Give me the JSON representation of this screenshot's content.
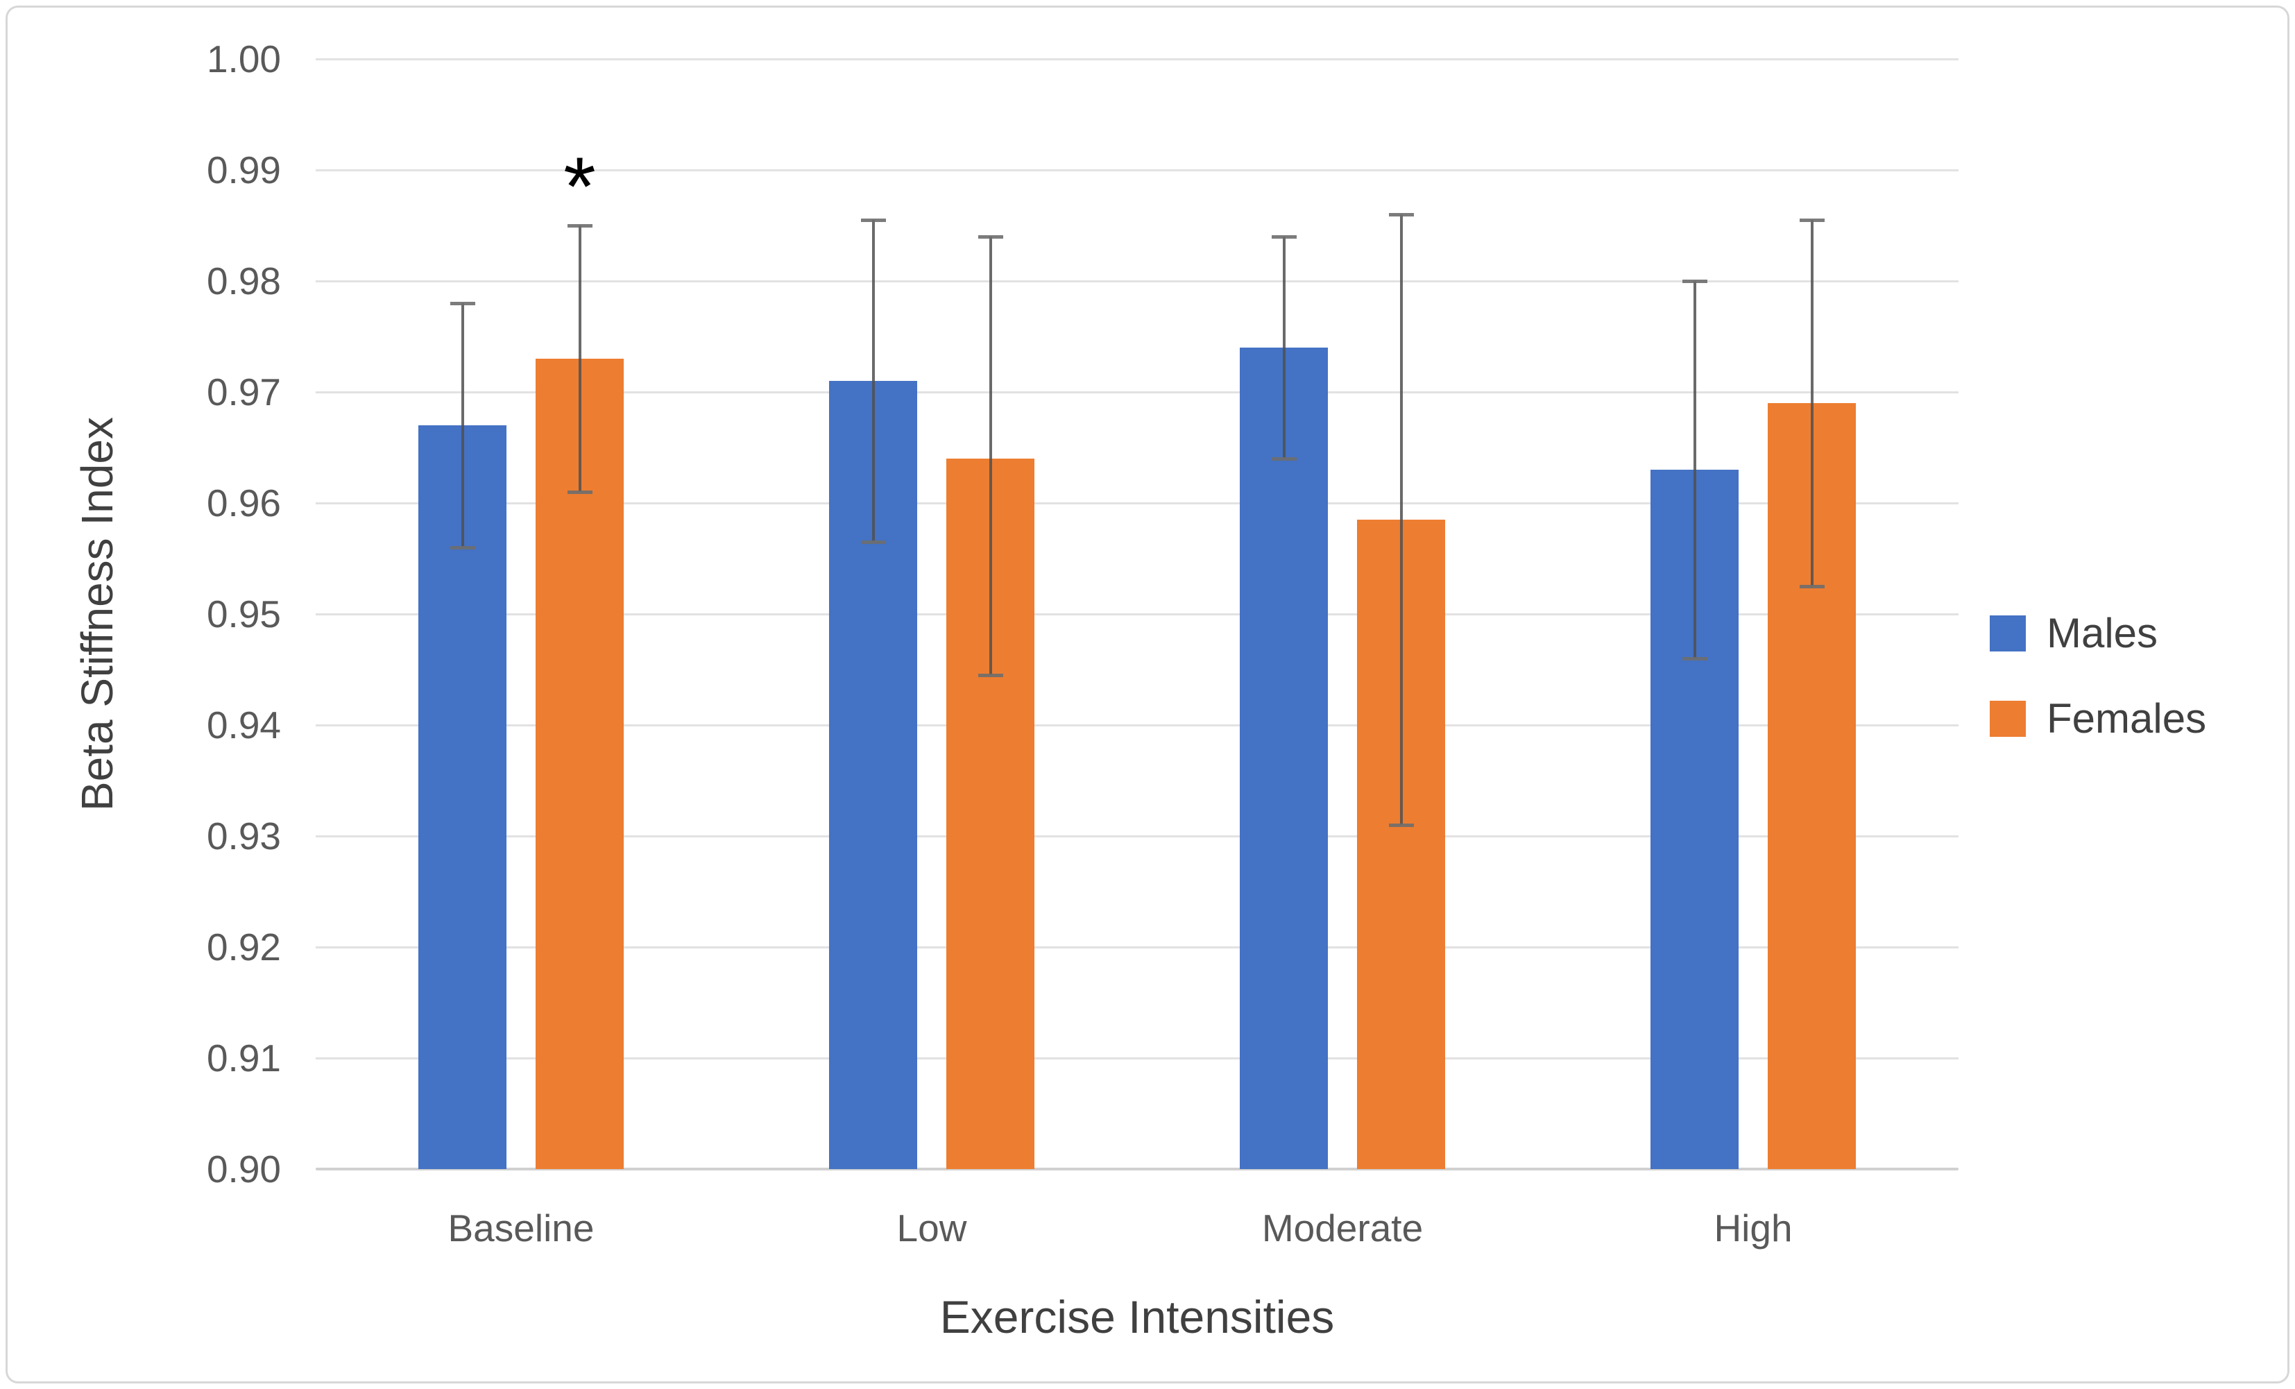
{
  "chart_data": {
    "type": "bar",
    "title": "",
    "categories": [
      "Baseline",
      "Low",
      "Moderate",
      "High"
    ],
    "series": [
      {
        "name": "Males",
        "color": "#4472C4",
        "values": [
          0.967,
          0.971,
          0.974,
          0.963
        ],
        "error_high": [
          0.978,
          0.9855,
          0.984,
          0.98
        ],
        "error_low": [
          0.956,
          0.9565,
          0.964,
          0.946
        ]
      },
      {
        "name": "Females",
        "color": "#ED7D31",
        "values": [
          0.973,
          0.964,
          0.9585,
          0.969
        ],
        "error_high": [
          0.985,
          0.984,
          0.986,
          0.9855
        ],
        "error_low": [
          0.961,
          0.9445,
          0.931,
          0.9525
        ]
      }
    ],
    "xlabel": "Exercise Intensities",
    "ylabel": "Beta Stiffness Index",
    "ylim": [
      0.9,
      1.0
    ],
    "ytick_step": 0.01,
    "yticks": [
      "1.00",
      "0.99",
      "0.98",
      "0.97",
      "0.96",
      "0.95",
      "0.94",
      "0.93",
      "0.92",
      "0.91",
      "0.90"
    ],
    "grid": true,
    "legend_position": "right",
    "annotation": {
      "symbol": "*",
      "category": "Baseline",
      "series": "Females",
      "y": 0.9885
    }
  },
  "colors": {
    "background": "#FFFFFF",
    "border": "#D7D7D7",
    "gridline": "#E2E2E2",
    "axis_line": "#D0D0D0",
    "tick_text": "#595959",
    "axis_title_text": "#404040",
    "legend_text": "#404040",
    "error_bar": "#595959",
    "annotation": "#000000"
  }
}
